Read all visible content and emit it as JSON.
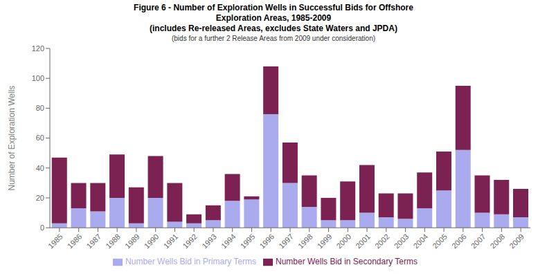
{
  "chart_data": {
    "type": "bar",
    "title": "Figure 6 - Number of Exploration Wells in Successful Bids for Offshore\nExploration Areas, 1985-2009",
    "subtitle": "(includes Re-released Areas, excludes State Waters and JPDA)",
    "annotations": [
      "(bids for a further 2 Release Areas from 2009 under consideration)"
    ],
    "y_label": "Number of Exploration Wells",
    "categories": [
      "1985",
      "1986",
      "1987",
      "1988",
      "1989",
      "1990",
      "1991",
      "1992",
      "1993",
      "1994",
      "1995",
      "1996",
      "1997",
      "1998",
      "1999",
      "2000",
      "2001",
      "2002",
      "2003",
      "2004",
      "2005",
      "2006",
      "2007",
      "2008",
      "2009"
    ],
    "series": [
      {
        "name": "Number Wells Bid in Primary Terms",
        "color": "#aaaaee",
        "values": [
          3,
          13,
          11,
          20,
          3,
          20,
          4,
          3,
          5,
          18,
          19,
          76,
          30,
          14,
          5,
          5,
          10,
          7,
          6,
          13,
          25,
          52,
          10,
          9,
          7
        ]
      },
      {
        "name": "Number Wells Bid in Secondary Terms",
        "color": "#7b2252",
        "values": [
          44,
          17,
          19,
          29,
          24,
          28,
          26,
          6,
          10,
          18,
          2,
          32,
          27,
          21,
          15,
          26,
          32,
          16,
          17,
          24,
          26,
          43,
          25,
          23,
          19
        ]
      }
    ],
    "stacked": true,
    "ylim": [
      0,
      120
    ],
    "yticks": [
      0,
      20,
      40,
      60,
      80,
      100,
      120
    ],
    "grid": false,
    "legend": "bottom"
  }
}
